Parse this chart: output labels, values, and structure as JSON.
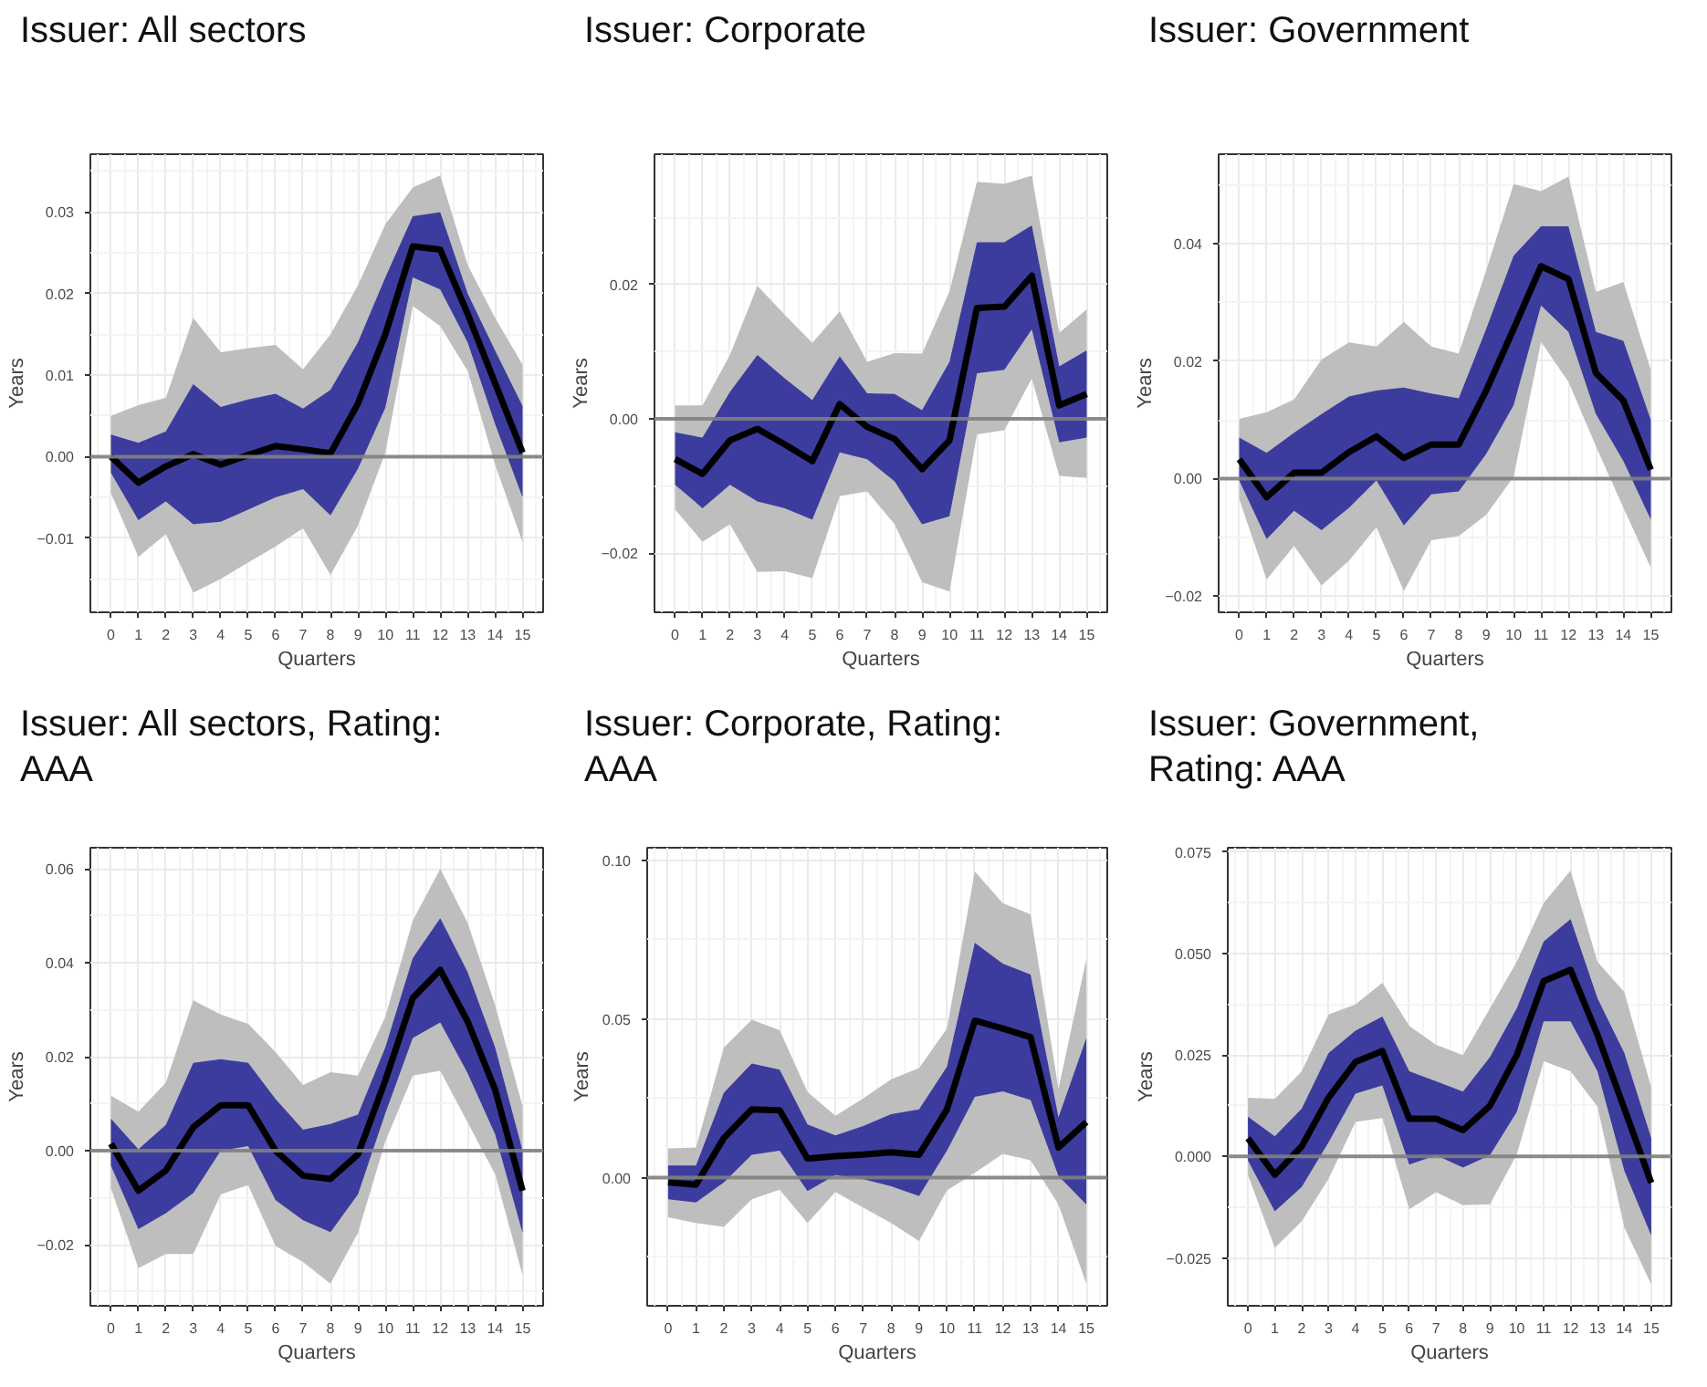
{
  "chart_data": [
    {
      "type": "line",
      "title": "Issuer: All sectors",
      "xlabel": "Quarters",
      "ylabel": "Years",
      "x": [
        0,
        1,
        2,
        3,
        4,
        5,
        6,
        7,
        8,
        9,
        10,
        11,
        12,
        13,
        14,
        15
      ],
      "xlim": [
        -0.75,
        15.75
      ],
      "xticks": [
        0,
        1,
        2,
        3,
        4,
        5,
        6,
        7,
        8,
        9,
        10,
        11,
        12,
        13,
        14,
        15
      ],
      "ylim": [
        -0.0191,
        0.0371
      ],
      "yticks": [
        {
          "value": -0.01,
          "label": "−0.01"
        },
        {
          "value": 0,
          "label": "0.00"
        },
        {
          "value": 0.01,
          "label": "0.01"
        },
        {
          "value": 0.02,
          "label": "0.02"
        },
        {
          "value": 0.03,
          "label": "0.03"
        }
      ],
      "grid": true,
      "ref_lines": [
        {
          "axis": "y",
          "value": 0,
          "color": "#808080"
        }
      ],
      "series": [
        {
          "color": "#bebebe",
          "values": [
            null,
            null,
            null,
            null,
            null,
            null,
            null,
            null,
            null,
            null,
            null,
            null,
            null,
            null,
            null,
            null
          ],
          "lower": [
            -0.0045,
            -0.0123,
            -0.0095,
            -0.0167,
            -0.015,
            -0.013,
            -0.011,
            -0.0088,
            -0.0145,
            -0.0085,
            0.0005,
            0.0185,
            0.016,
            0.0105,
            -0.001,
            -0.0105
          ],
          "upper": [
            0.005,
            0.0063,
            0.0072,
            0.017,
            0.0128,
            0.0133,
            0.0137,
            0.0107,
            0.015,
            0.021,
            0.0285,
            0.033,
            0.0345,
            0.0235,
            0.017,
            0.0113
          ]
        },
        {
          "color": "#3c3c9e",
          "values": [
            null,
            null,
            null,
            null,
            null,
            null,
            null,
            null,
            null,
            null,
            null,
            null,
            null,
            null,
            null,
            null
          ],
          "lower": [
            -0.002,
            -0.0078,
            -0.0055,
            -0.0083,
            -0.008,
            -0.0065,
            -0.005,
            -0.004,
            -0.0072,
            -0.0015,
            0.006,
            0.022,
            0.0205,
            0.014,
            0.004,
            -0.005
          ],
          "upper": [
            0.0027,
            0.0017,
            0.0031,
            0.0089,
            0.0061,
            0.007,
            0.0077,
            0.0059,
            0.0082,
            0.014,
            0.022,
            0.0295,
            0.03,
            0.02,
            0.013,
            0.0062
          ]
        },
        {
          "color": "#000000",
          "values": [
            0.0,
            -0.0032,
            -0.0012,
            0.0003,
            -0.001,
            0.0002,
            0.0013,
            0.0009,
            0.0004,
            0.0065,
            0.015,
            0.0258,
            0.0254,
            0.0175,
            0.009,
            0.0005
          ]
        }
      ]
    },
    {
      "type": "line",
      "title": "Issuer: Corporate",
      "xlabel": "Quarters",
      "ylabel": "Years",
      "x": [
        0,
        1,
        2,
        3,
        4,
        5,
        6,
        7,
        8,
        9,
        10,
        11,
        12,
        13,
        14,
        15
      ],
      "xlim": [
        -0.75,
        15.75
      ],
      "xticks": [
        0,
        1,
        2,
        3,
        4,
        5,
        6,
        7,
        8,
        9,
        10,
        11,
        12,
        13,
        14,
        15
      ],
      "ylim": [
        -0.0288,
        0.0394
      ],
      "yticks": [
        {
          "value": -0.02,
          "label": "−0.02"
        },
        {
          "value": 0,
          "label": "0.00"
        },
        {
          "value": 0.02,
          "label": "0.02"
        }
      ],
      "grid": true,
      "ref_lines": [
        {
          "axis": "y",
          "value": 0,
          "color": "#808080"
        }
      ],
      "series": [
        {
          "color": "#bebebe",
          "values": [
            null,
            null,
            null,
            null,
            null,
            null,
            null,
            null,
            null,
            null,
            null,
            null,
            null,
            null,
            null,
            null
          ],
          "lower": [
            -0.0135,
            -0.0183,
            -0.0157,
            -0.0228,
            -0.0227,
            -0.0237,
            -0.0115,
            -0.0108,
            -0.0157,
            -0.0243,
            -0.0257,
            -0.0023,
            -0.0017,
            0.006,
            -0.0085,
            -0.0088
          ],
          "upper": [
            0.002,
            0.002,
            0.0095,
            0.0198,
            0.0155,
            0.0113,
            0.016,
            0.0085,
            0.0098,
            0.0097,
            0.019,
            0.0353,
            0.035,
            0.0362,
            0.0128,
            0.0163
          ]
        },
        {
          "color": "#3c3c9e",
          "values": [
            null,
            null,
            null,
            null,
            null,
            null,
            null,
            null,
            null,
            null,
            null,
            null,
            null,
            null,
            null,
            null
          ],
          "lower": [
            -0.0098,
            -0.0133,
            -0.0098,
            -0.0123,
            -0.0133,
            -0.015,
            -0.005,
            -0.006,
            -0.0093,
            -0.0157,
            -0.0145,
            0.0068,
            0.0073,
            0.0133,
            -0.0035,
            -0.0028
          ],
          "upper": [
            -0.002,
            -0.0028,
            0.004,
            0.0095,
            0.006,
            0.0028,
            0.0093,
            0.0038,
            0.0037,
            0.0013,
            0.0085,
            0.0263,
            0.0263,
            0.0288,
            0.0078,
            0.0102
          ]
        },
        {
          "color": "#000000",
          "values": [
            -0.006,
            -0.0082,
            -0.0032,
            -0.0015,
            -0.0038,
            -0.0063,
            0.0022,
            -0.0012,
            -0.003,
            -0.0075,
            -0.0032,
            0.0165,
            0.0167,
            0.0213,
            0.002,
            0.0037
          ]
        }
      ]
    },
    {
      "type": "line",
      "title": "Issuer: Government",
      "xlabel": "Quarters",
      "ylabel": "Years",
      "x": [
        0,
        1,
        2,
        3,
        4,
        5,
        6,
        7,
        8,
        9,
        10,
        11,
        12,
        13,
        14,
        15
      ],
      "xlim": [
        -0.75,
        15.75
      ],
      "xticks": [
        0,
        1,
        2,
        3,
        4,
        5,
        6,
        7,
        8,
        9,
        10,
        11,
        12,
        13,
        14,
        15
      ],
      "ylim": [
        -0.0228,
        0.0553
      ],
      "yticks": [
        {
          "value": -0.02,
          "label": "−0.02"
        },
        {
          "value": 0,
          "label": "0.00"
        },
        {
          "value": 0.02,
          "label": "0.02"
        },
        {
          "value": 0.04,
          "label": "0.04"
        }
      ],
      "grid": true,
      "ref_lines": [
        {
          "axis": "y",
          "value": 0,
          "color": "#808080"
        }
      ],
      "series": [
        {
          "color": "#bebebe",
          "values": [
            null,
            null,
            null,
            null,
            null,
            null,
            null,
            null,
            null,
            null,
            null,
            null,
            null,
            null,
            null,
            null
          ],
          "lower": [
            -0.0035,
            -0.0172,
            -0.0115,
            -0.0182,
            -0.014,
            -0.0083,
            -0.0192,
            -0.0105,
            -0.0098,
            -0.0062,
            0.0003,
            0.0233,
            0.0165,
            0.0055,
            -0.005,
            -0.0152
          ],
          "upper": [
            0.0102,
            0.0113,
            0.0135,
            0.0203,
            0.0232,
            0.0225,
            0.0267,
            0.0225,
            0.0213,
            0.0355,
            0.0502,
            0.049,
            0.0515,
            0.0318,
            0.0335,
            0.0185
          ]
        },
        {
          "color": "#3c3c9e",
          "values": [
            null,
            null,
            null,
            null,
            null,
            null,
            null,
            null,
            null,
            null,
            null,
            null,
            null,
            null,
            null,
            null
          ],
          "lower": [
            -0.0003,
            -0.0103,
            -0.0055,
            -0.0088,
            -0.005,
            -0.0003,
            -0.008,
            -0.0027,
            -0.0022,
            0.0042,
            0.0125,
            0.0295,
            0.025,
            0.011,
            0.003,
            -0.007
          ],
          "upper": [
            0.007,
            0.0044,
            0.0078,
            0.011,
            0.014,
            0.015,
            0.0155,
            0.0145,
            0.0137,
            0.0255,
            0.038,
            0.043,
            0.043,
            0.025,
            0.0235,
            0.01
          ]
        },
        {
          "color": "#000000",
          "values": [
            0.0033,
            -0.0032,
            0.001,
            0.001,
            0.0045,
            0.0072,
            0.0035,
            0.0058,
            0.0058,
            0.015,
            0.0255,
            0.0362,
            0.034,
            0.018,
            0.0133,
            0.0015
          ]
        }
      ]
    },
    {
      "type": "line",
      "title": "Issuer: All sectors, Rating: AAA",
      "xlabel": "Quarters",
      "ylabel": "Years",
      "x": [
        0,
        1,
        2,
        3,
        4,
        5,
        6,
        7,
        8,
        9,
        10,
        11,
        12,
        13,
        14,
        15
      ],
      "xlim": [
        -0.75,
        15.75
      ],
      "xticks": [
        0,
        1,
        2,
        3,
        4,
        5,
        6,
        7,
        8,
        9,
        10,
        11,
        12,
        13,
        14,
        15
      ],
      "ylim": [
        -0.033,
        0.0645
      ],
      "yticks": [
        {
          "value": -0.02,
          "label": "−0.02"
        },
        {
          "value": 0,
          "label": "0.00"
        },
        {
          "value": 0.02,
          "label": "0.02"
        },
        {
          "value": 0.04,
          "label": "0.04"
        },
        {
          "value": 0.06,
          "label": "0.06"
        }
      ],
      "grid": true,
      "ref_lines": [
        {
          "axis": "y",
          "value": 0,
          "color": "#808080"
        }
      ],
      "series": [
        {
          "color": "#bebebe",
          "values": [
            null,
            null,
            null,
            null,
            null,
            null,
            null,
            null,
            null,
            null,
            null,
            null,
            null,
            null,
            null,
            null
          ],
          "lower": [
            -0.008,
            -0.025,
            -0.022,
            -0.022,
            -0.0093,
            -0.0073,
            -0.0203,
            -0.0237,
            -0.0283,
            -0.0175,
            0.002,
            0.016,
            0.017,
            0.006,
            -0.005,
            -0.0265
          ],
          "upper": [
            0.0117,
            0.0083,
            0.0145,
            0.032,
            0.029,
            0.027,
            0.021,
            0.014,
            0.0167,
            0.016,
            0.0285,
            0.049,
            0.06,
            0.0485,
            0.031,
            0.0095
          ]
        },
        {
          "color": "#3c3c9e",
          "values": [
            null,
            null,
            null,
            null,
            null,
            null,
            null,
            null,
            null,
            null,
            null,
            null,
            null,
            null,
            null,
            null
          ],
          "lower": [
            -0.0032,
            -0.0167,
            -0.0133,
            -0.009,
            0.0,
            0.001,
            -0.0105,
            -0.0148,
            -0.0173,
            -0.0093,
            0.008,
            0.024,
            0.0273,
            0.0165,
            0.0035,
            -0.0175
          ],
          "upper": [
            0.0068,
            0.0003,
            0.0055,
            0.0187,
            0.0195,
            0.0187,
            0.011,
            0.0045,
            0.0057,
            0.0077,
            0.022,
            0.041,
            0.0495,
            0.038,
            0.022,
            0.0
          ]
        },
        {
          "color": "#000000",
          "values": [
            0.0015,
            -0.0085,
            -0.0042,
            0.005,
            0.0097,
            0.0097,
            0.0,
            -0.0053,
            -0.006,
            -0.0008,
            0.015,
            0.0325,
            0.0385,
            0.0275,
            0.013,
            -0.0085
          ]
        }
      ]
    },
    {
      "type": "line",
      "title": "Issuer: Corporate, Rating: AAA",
      "xlabel": "Quarters",
      "ylabel": "Years",
      "x": [
        0,
        1,
        2,
        3,
        4,
        5,
        6,
        7,
        8,
        9,
        10,
        11,
        12,
        13,
        14,
        15
      ],
      "xlim": [
        -0.75,
        15.75
      ],
      "xticks": [
        0,
        1,
        2,
        3,
        4,
        5,
        6,
        7,
        8,
        9,
        10,
        11,
        12,
        13,
        14,
        15
      ],
      "ylim": [
        -0.0404,
        0.104
      ],
      "yticks": [
        {
          "value": 0,
          "label": "0.00"
        },
        {
          "value": 0.05,
          "label": "0.05"
        },
        {
          "value": 0.1,
          "label": "0.10"
        }
      ],
      "grid": true,
      "ref_lines": [
        {
          "axis": "y",
          "value": 0,
          "color": "#808080"
        }
      ],
      "series": [
        {
          "color": "#bebebe",
          "values": [
            null,
            null,
            null,
            null,
            null,
            null,
            null,
            null,
            null,
            null,
            null,
            null,
            null,
            null,
            null,
            null
          ],
          "lower": [
            -0.0125,
            -0.0143,
            -0.0155,
            -0.0068,
            -0.0038,
            -0.0143,
            -0.0045,
            -0.0095,
            -0.0143,
            -0.02,
            -0.004,
            0.0015,
            0.0075,
            0.0055,
            -0.0085,
            -0.0335
          ],
          "upper": [
            0.0092,
            0.0095,
            0.041,
            0.0498,
            0.0465,
            0.027,
            0.0195,
            0.025,
            0.031,
            0.0345,
            0.047,
            0.0965,
            0.0865,
            0.083,
            0.028,
            0.069
          ]
        },
        {
          "color": "#3c3c9e",
          "values": [
            null,
            null,
            null,
            null,
            null,
            null,
            null,
            null,
            null,
            null,
            null,
            null,
            null,
            null,
            null,
            null
          ],
          "lower": [
            -0.0068,
            -0.0078,
            -0.0015,
            0.0072,
            0.0085,
            -0.0042,
            0.0008,
            -0.0005,
            -0.0027,
            -0.0058,
            0.0085,
            0.0255,
            0.0272,
            0.0245,
            0.0005,
            -0.0085
          ],
          "upper": [
            0.0038,
            0.0038,
            0.0268,
            0.036,
            0.034,
            0.0168,
            0.0133,
            0.0163,
            0.02,
            0.0215,
            0.035,
            0.074,
            0.0675,
            0.064,
            0.019,
            0.044
          ]
        },
        {
          "color": "#000000",
          "values": [
            -0.0015,
            -0.0022,
            0.0125,
            0.0215,
            0.0212,
            0.006,
            0.0068,
            0.0073,
            0.008,
            0.0072,
            0.0215,
            0.0495,
            0.047,
            0.0443,
            0.0095,
            0.0175
          ]
        }
      ]
    },
    {
      "type": "line",
      "title": "Issuer: Government, Rating: AAA",
      "xlabel": "Quarters",
      "ylabel": "Years",
      "x": [
        0,
        1,
        2,
        3,
        4,
        5,
        6,
        7,
        8,
        9,
        10,
        11,
        12,
        13,
        14,
        15
      ],
      "xlim": [
        -0.75,
        15.75
      ],
      "xticks": [
        0,
        1,
        2,
        3,
        4,
        5,
        6,
        7,
        8,
        9,
        10,
        11,
        12,
        13,
        14,
        15
      ],
      "ylim": [
        -0.0368,
        0.0761
      ],
      "yticks": [
        {
          "value": -0.025,
          "label": "−0.025"
        },
        {
          "value": 0,
          "label": "0.000"
        },
        {
          "value": 0.025,
          "label": "0.025"
        },
        {
          "value": 0.05,
          "label": "0.050"
        },
        {
          "value": 0.075,
          "label": "0.075"
        }
      ],
      "grid": true,
      "ref_lines": [
        {
          "axis": "y",
          "value": 0,
          "color": "#808080"
        }
      ],
      "series": [
        {
          "color": "#bebebe",
          "values": [
            null,
            null,
            null,
            null,
            null,
            null,
            null,
            null,
            null,
            null,
            null,
            null,
            null,
            null,
            null,
            null
          ],
          "lower": [
            -0.0045,
            -0.0225,
            -0.016,
            -0.0055,
            0.0085,
            0.0095,
            -0.013,
            -0.0088,
            -0.012,
            -0.0118,
            0.0005,
            0.0235,
            0.021,
            0.0123,
            -0.0175,
            -0.0315
          ],
          "upper": [
            0.0145,
            0.0142,
            0.021,
            0.035,
            0.0375,
            0.0428,
            0.0322,
            0.0275,
            0.025,
            0.0365,
            0.048,
            0.0625,
            0.0705,
            0.048,
            0.0405,
            0.017
          ]
        },
        {
          "color": "#3c3c9e",
          "values": [
            null,
            null,
            null,
            null,
            null,
            null,
            null,
            null,
            null,
            null,
            null,
            null,
            null,
            null,
            null,
            null
          ],
          "lower": [
            -0.001,
            -0.0135,
            -0.0075,
            0.0035,
            0.0155,
            0.0175,
            -0.002,
            0.0003,
            -0.0027,
            0.0003,
            0.011,
            0.0333,
            0.0333,
            0.021,
            -0.0035,
            -0.0195
          ],
          "upper": [
            0.0098,
            0.005,
            0.0118,
            0.0255,
            0.031,
            0.0345,
            0.021,
            0.0185,
            0.016,
            0.0245,
            0.0365,
            0.053,
            0.0585,
            0.039,
            0.0255,
            0.0045
          ]
        },
        {
          "color": "#000000",
          "values": [
            0.0045,
            -0.0045,
            0.0025,
            0.0145,
            0.0233,
            0.026,
            0.0093,
            0.0093,
            0.0065,
            0.0125,
            0.025,
            0.0432,
            0.046,
            0.03,
            0.0118,
            -0.0065
          ]
        }
      ]
    }
  ]
}
